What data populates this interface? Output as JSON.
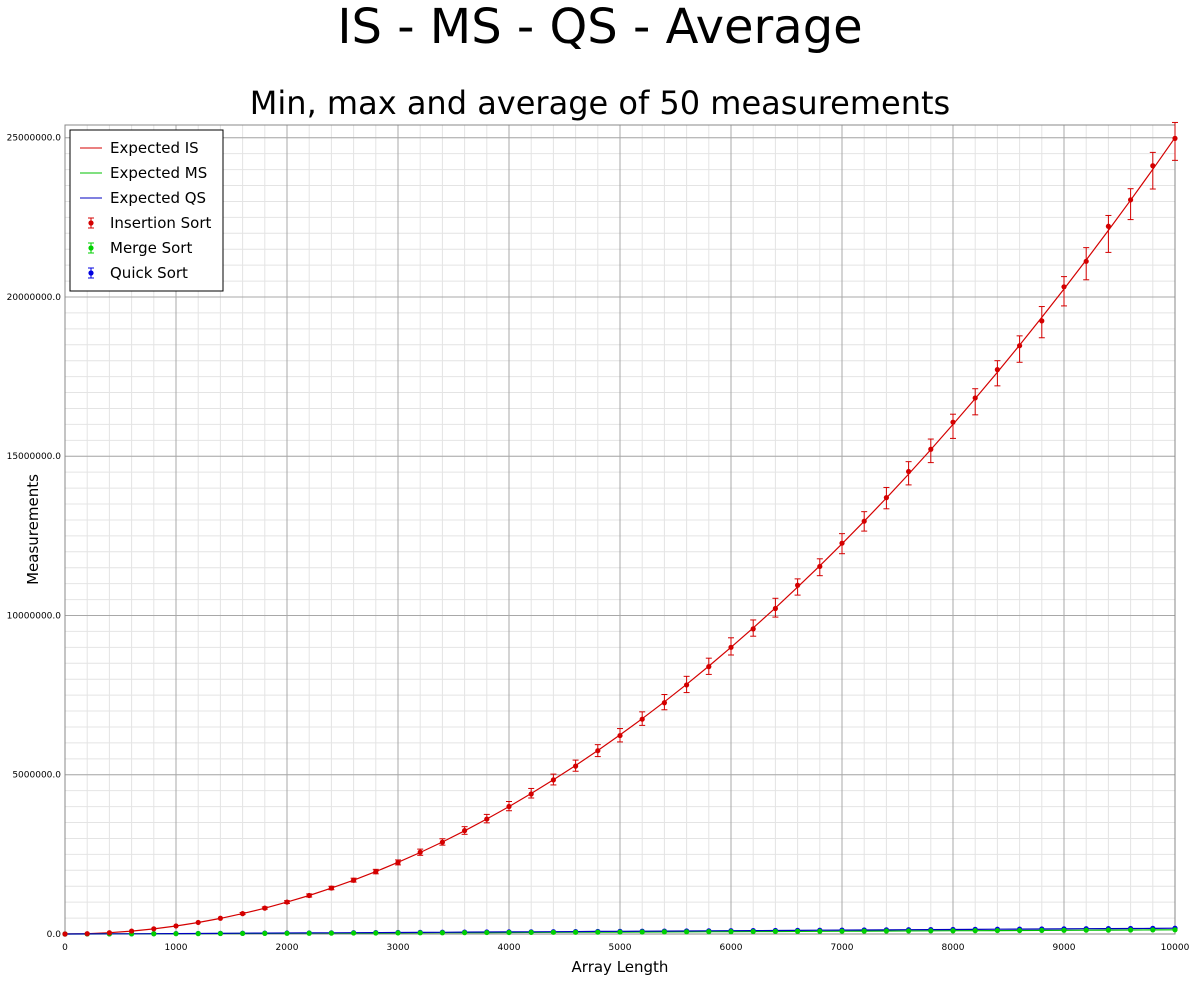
{
  "chart_data": {
    "type": "scatter",
    "title": "IS - MS - QS - Average",
    "subtitle": "Min, max and average of 50 measurements",
    "xlabel": "Array Length",
    "ylabel": "Measurements",
    "xlim": [
      0,
      10000
    ],
    "ylim": [
      0,
      25400000
    ],
    "x_ticks": [
      0,
      1000,
      2000,
      3000,
      4000,
      5000,
      6000,
      7000,
      8000,
      9000,
      10000
    ],
    "x_tick_labels": [
      "0",
      "1000",
      "2000",
      "3000",
      "4000",
      "5000",
      "6000",
      "7000",
      "8000",
      "9000",
      "10000"
    ],
    "y_ticks": [
      0,
      5000000,
      10000000,
      15000000,
      20000000,
      25000000
    ],
    "y_tick_labels": [
      "0.0",
      "5000000.0",
      "10000000.0",
      "15000000.0",
      "20000000.0",
      "25000000.0"
    ],
    "grid": true,
    "legend_position": "top-left",
    "x": [
      0,
      200,
      400,
      600,
      800,
      1000,
      1200,
      1400,
      1600,
      1800,
      2000,
      2200,
      2400,
      2600,
      2800,
      3000,
      3200,
      3400,
      3600,
      3800,
      4000,
      4200,
      4400,
      4600,
      4800,
      5000,
      5200,
      5400,
      5600,
      5800,
      6000,
      6200,
      6400,
      6600,
      6800,
      7000,
      7200,
      7400,
      7600,
      7800,
      8000,
      8200,
      8400,
      8600,
      8800,
      9000,
      9200,
      9400,
      9600,
      9800,
      10000
    ],
    "expected_lines": [
      {
        "name": "Expected IS",
        "color": "#d40000",
        "values": [
          0,
          10000,
          40000,
          90000,
          160000,
          250000,
          360000,
          490000,
          640000,
          810000,
          1000000,
          1210000,
          1440000,
          1690000,
          1960000,
          2250000,
          2560000,
          2890000,
          3240000,
          3610000,
          4000000,
          4410000,
          4840000,
          5290000,
          5760000,
          6250000,
          6760000,
          7290000,
          7840000,
          8410000,
          9000000,
          9610000,
          10240000,
          10890000,
          11560000,
          12250000,
          12960000,
          13690000,
          14440000,
          15210000,
          16000000,
          16810000,
          17640000,
          18490000,
          19360000,
          20250000,
          21160000,
          22090000,
          23040000,
          24010000,
          25000000
        ]
      },
      {
        "name": "Expected MS",
        "color": "#00c000",
        "values": [
          0,
          1529,
          3458,
          5537,
          7716,
          9966,
          12270,
          14620,
          17000,
          19420,
          21860,
          24330,
          26820,
          29330,
          31860,
          34410,
          36980,
          39560,
          42160,
          44770,
          47400,
          50040,
          52690,
          55350,
          58030,
          60720,
          63420,
          66130,
          68840,
          71570,
          74310,
          77050,
          79810,
          82570,
          85350,
          88130,
          90920,
          93720,
          96520,
          99330,
          102150,
          104980,
          107810,
          110650,
          113500,
          116360,
          119220,
          122090,
          124970,
          127850,
          130740
        ]
      },
      {
        "name": "Expected QS",
        "color": "#0000c0",
        "values": [
          0,
          2120,
          4795,
          7676,
          10697,
          13816,
          17010,
          20260,
          23570,
          26920,
          30300,
          33730,
          37180,
          40660,
          44170,
          47710,
          51270,
          54850,
          58450,
          62070,
          65710,
          69370,
          73040,
          76730,
          80440,
          84160,
          87910,
          91660,
          95420,
          99210,
          103000,
          106800,
          110600,
          114500,
          118300,
          122200,
          126000,
          129900,
          133800,
          137700,
          141600,
          145500,
          149500,
          153400,
          157300,
          161300,
          165300,
          169200,
          173200,
          177200,
          181200
        ]
      }
    ],
    "series": [
      {
        "name": "Insertion Sort",
        "color": "#d40000",
        "marker": "circle",
        "values": [
          0,
          10500,
          39000,
          92000,
          163000,
          252000,
          362000,
          495000,
          640000,
          812000,
          1002000,
          1208000,
          1442000,
          1688000,
          1958000,
          2245000,
          2566000,
          2882000,
          3245000,
          3608000,
          4003000,
          4395000,
          4838000,
          5270000,
          5755000,
          6230000,
          6745000,
          7260000,
          7820000,
          8395000,
          9000000,
          9580000,
          10220000,
          10950000,
          11540000,
          12270000,
          12960000,
          13700000,
          14520000,
          15220000,
          16070000,
          16830000,
          17720000,
          18470000,
          19250000,
          20320000,
          21120000,
          22220000,
          23050000,
          24120000,
          24980000
        ],
        "min": [
          0,
          9000,
          35000,
          84000,
          150000,
          235000,
          340000,
          470000,
          610000,
          780000,
          960000,
          1160000,
          1390000,
          1630000,
          1890000,
          2170000,
          2470000,
          2790000,
          3130000,
          3490000,
          3870000,
          4270000,
          4680000,
          5110000,
          5570000,
          6030000,
          6550000,
          7040000,
          7580000,
          8150000,
          8760000,
          9350000,
          9950000,
          10640000,
          11250000,
          11940000,
          12650000,
          13350000,
          14100000,
          14800000,
          15560000,
          16300000,
          17210000,
          17950000,
          18720000,
          19720000,
          20540000,
          21400000,
          22430000,
          23390000,
          24290000
        ],
        "max": [
          0,
          12000,
          43000,
          100000,
          175000,
          270000,
          384000,
          520000,
          675000,
          850000,
          1045000,
          1258000,
          1498000,
          1752000,
          2030000,
          2325000,
          2665000,
          2990000,
          3370000,
          3755000,
          4160000,
          4570000,
          5020000,
          5460000,
          5945000,
          6450000,
          6975000,
          7520000,
          8090000,
          8660000,
          9300000,
          9860000,
          10540000,
          11150000,
          11780000,
          12570000,
          13260000,
          14020000,
          14830000,
          15540000,
          16320000,
          17120000,
          18000000,
          18780000,
          19700000,
          20640000,
          21550000,
          22560000,
          23400000,
          24540000,
          25480000
        ]
      },
      {
        "name": "Merge Sort",
        "color": "#00d000",
        "marker": "circle",
        "values": [
          0,
          1550,
          3450,
          5520,
          7710,
          9950,
          12280,
          14600,
          17010,
          19400,
          21850,
          24340,
          26800,
          29340,
          31850,
          34400,
          36990,
          39550,
          42170,
          44760,
          47390,
          50050,
          52680,
          55340,
          58040,
          60710,
          63430,
          66120,
          68850,
          71560,
          74300,
          77060,
          79800,
          82580,
          85340,
          88140,
          90910,
          93730,
          96510,
          99340,
          102140,
          104990,
          107800,
          110660,
          113490,
          116370,
          119210,
          122100,
          124960,
          127860,
          130730
        ],
        "min": [
          0,
          1400,
          3250,
          5280,
          7420,
          9620,
          11900,
          14180,
          16560,
          18910,
          21330,
          23780,
          26210,
          28710,
          31190,
          33700,
          36250,
          38780,
          41370,
          43930,
          46520,
          49150,
          51750,
          54380,
          57050,
          59690,
          62380,
          65040,
          67740,
          70420,
          73130,
          75860,
          78570,
          81320,
          84050,
          86820,
          89560,
          92360,
          95110,
          97910,
          100680,
          103500,
          106280,
          109120,
          111920,
          114770,
          117580,
          120440,
          123270,
          126140,
          128980
        ],
        "max": [
          0,
          1700,
          3650,
          5760,
          8000,
          10280,
          12660,
          15020,
          17460,
          19890,
          22370,
          24900,
          27390,
          29970,
          32510,
          35100,
          37730,
          40320,
          42970,
          45590,
          48260,
          50950,
          53610,
          56300,
          59030,
          61730,
          64480,
          67200,
          69960,
          72700,
          75470,
          78260,
          81030,
          83840,
          86630,
          89460,
          92260,
          95100,
          97910,
          100770,
          103600,
          106480,
          109320,
          112200,
          115060,
          117970,
          120840,
          123760,
          126650,
          129580,
          132480
        ]
      },
      {
        "name": "Quick Sort",
        "color": "#0000e0",
        "marker": "circle",
        "values": [
          0,
          2100,
          4800,
          7650,
          10700,
          13800,
          17020,
          20250,
          23580,
          26910,
          30310,
          33720,
          37190,
          40650,
          44180,
          47700,
          51280,
          54840,
          58460,
          62060,
          65720,
          69360,
          73050,
          76720,
          80450,
          84150,
          87920,
          91650,
          95430,
          99200,
          103010,
          106790,
          110610,
          114490,
          118310,
          122190,
          126010,
          129890,
          133810,
          137690,
          141610,
          145490,
          149510,
          153390,
          157310,
          161290,
          165310,
          169190,
          173210,
          177190,
          181210
        ],
        "min": [
          0,
          1900,
          4450,
          7200,
          10100,
          13100,
          16200,
          19300,
          22500,
          25750,
          29050,
          32400,
          35800,
          39200,
          42650,
          46100,
          49600,
          53100,
          56650,
          60200,
          63800,
          67350,
          70950,
          74550,
          78200,
          81850,
          85550,
          89200,
          92900,
          96600,
          100300,
          104050,
          107800,
          111600,
          115350,
          119150,
          122900,
          126700,
          130550,
          134350,
          138200,
          142000,
          145900,
          149700,
          153550,
          157450,
          161350,
          165150,
          169050,
          172950,
          176850
        ],
        "max": [
          0,
          2350,
          5200,
          8150,
          11350,
          14550,
          17850,
          21200,
          24650,
          28100,
          31600,
          35100,
          38650,
          42200,
          45800,
          49400,
          53050,
          56700,
          60400,
          64050,
          67750,
          71450,
          75200,
          78950,
          82750,
          86550,
          90400,
          94200,
          98050,
          101900,
          105750,
          109650,
          113550,
          117500,
          121400,
          125350,
          129250,
          133200,
          137200,
          141150,
          145150,
          149100,
          153200,
          157150,
          161150,
          165200,
          169300,
          173250,
          177350,
          181350,
          185450
        ]
      }
    ]
  }
}
